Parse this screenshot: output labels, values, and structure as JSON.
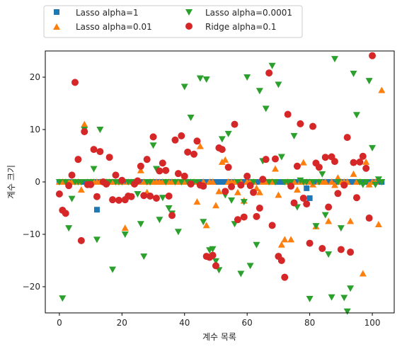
{
  "colors": {
    "lasso_1": "#1f77b4",
    "lasso_001": "#ff7f0e",
    "lasso_00001": "#2ca02c",
    "ridge_01": "#d62728"
  },
  "chart_data": {
    "type": "scatter",
    "title": "",
    "xlabel": "계수 목록",
    "ylabel": "계수 크기",
    "xlim": [
      -4.5,
      107
    ],
    "ylim": [
      -25,
      25
    ],
    "xticks": [
      0,
      20,
      40,
      60,
      80,
      100
    ],
    "yticks": [
      -20,
      -10,
      0,
      10,
      20
    ],
    "grid": false,
    "legend": "upper, outside, two columns",
    "series": [
      {
        "name": "Lasso alpha=1",
        "marker": "square",
        "color": "#1f77b4",
        "note_zero_except": true,
        "points": [
          [
            12,
            -5.3
          ],
          [
            79,
            -1.2
          ],
          [
            80,
            -3.1
          ]
        ]
      },
      {
        "name": "Lasso alpha=0.01",
        "marker": "triangle-up",
        "color": "#ff7f0e",
        "points": [
          [
            7,
            -1.5
          ],
          [
            8,
            11.0
          ],
          [
            21,
            -8.8
          ],
          [
            26,
            2.2
          ],
          [
            28,
            -2.0
          ],
          [
            44,
            -3.8
          ],
          [
            45,
            6.8
          ],
          [
            47,
            -8.3
          ],
          [
            50,
            -4.5
          ],
          [
            51,
            -1.8
          ],
          [
            52,
            3.8
          ],
          [
            53,
            4.2
          ],
          [
            57,
            -2.0
          ],
          [
            59,
            -3.6
          ],
          [
            63,
            -1.2
          ],
          [
            64,
            -2.0
          ],
          [
            69,
            2.5
          ],
          [
            70,
            -2.5
          ],
          [
            71,
            -12.0
          ],
          [
            72,
            -11.0
          ],
          [
            74,
            -11.0
          ],
          [
            76,
            -1.5
          ],
          [
            78,
            3.7
          ],
          [
            81,
            -0.5
          ],
          [
            82,
            -8.5
          ],
          [
            86,
            -7.5
          ],
          [
            88,
            -0.6
          ],
          [
            89,
            0.8
          ],
          [
            93,
            -7.5
          ],
          [
            94,
            1.5
          ],
          [
            97,
            -17.5
          ],
          [
            98,
            3.8
          ],
          [
            99,
            -0.5
          ],
          [
            102,
            -8.1
          ],
          [
            103,
            17.5
          ]
        ]
      },
      {
        "name": "Lasso alpha=0.0001",
        "marker": "triangle-down",
        "color": "#2ca02c",
        "points": [
          [
            0,
            0.0
          ],
          [
            1,
            -22.2
          ],
          [
            3,
            -8.8
          ],
          [
            4,
            -3.2
          ],
          [
            8,
            10.0
          ],
          [
            11,
            2.5
          ],
          [
            12,
            -11.0
          ],
          [
            13,
            10.0
          ],
          [
            17,
            -16.7
          ],
          [
            21,
            -10.0
          ],
          [
            25,
            -2.3
          ],
          [
            26,
            -8.0
          ],
          [
            27,
            -14.2
          ],
          [
            30,
            7.0
          ],
          [
            31,
            2.5
          ],
          [
            32,
            -7.2
          ],
          [
            33,
            -3.0
          ],
          [
            35,
            -5.0
          ],
          [
            36,
            -6.0
          ],
          [
            38,
            -9.5
          ],
          [
            40,
            18.2
          ],
          [
            42,
            12.3
          ],
          [
            45,
            19.8
          ],
          [
            46,
            -7.6
          ],
          [
            47,
            19.6
          ],
          [
            48,
            -13.0
          ],
          [
            49,
            -12.8
          ],
          [
            50,
            -15.1
          ],
          [
            51,
            -16.8
          ],
          [
            52,
            8.2
          ],
          [
            53,
            -2.5
          ],
          [
            54,
            9.2
          ],
          [
            55,
            -3.5
          ],
          [
            56,
            -8.0
          ],
          [
            58,
            -17.5
          ],
          [
            59,
            -3.8
          ],
          [
            60,
            20.0
          ],
          [
            61,
            -16.0
          ],
          [
            63,
            -12.0
          ],
          [
            64,
            17.4
          ],
          [
            65,
            4.0
          ],
          [
            66,
            14.0
          ],
          [
            68,
            22.2
          ],
          [
            70,
            18.6
          ],
          [
            71,
            4.8
          ],
          [
            75,
            8.8
          ],
          [
            76,
            -4.8
          ],
          [
            77,
            0.3
          ],
          [
            80,
            -22.3
          ],
          [
            82,
            -8.4
          ],
          [
            84,
            1.5
          ],
          [
            85,
            -6.3
          ],
          [
            86,
            -13.8
          ],
          [
            87,
            -22.0
          ],
          [
            88,
            23.5
          ],
          [
            90,
            -8.8
          ],
          [
            91,
            -22.1
          ],
          [
            92,
            -24.7
          ],
          [
            93,
            -20.3
          ],
          [
            94,
            20.7
          ],
          [
            95,
            12.8
          ],
          [
            97,
            -0.5
          ],
          [
            99,
            19.3
          ],
          [
            100,
            6.5
          ],
          [
            101,
            -0.5
          ],
          [
            102,
            0.5
          ]
        ]
      },
      {
        "name": "Ridge alpha=0.1",
        "marker": "circle",
        "color": "#d62728",
        "points": [
          [
            0,
            -2.3
          ],
          [
            1,
            -5.4
          ],
          [
            2,
            -6.0
          ],
          [
            3,
            -0.7
          ],
          [
            4,
            1.3
          ],
          [
            5,
            19.0
          ],
          [
            6,
            4.3
          ],
          [
            7,
            -11.2
          ],
          [
            8,
            9.6
          ],
          [
            9,
            -0.5
          ],
          [
            10,
            -0.5
          ],
          [
            11,
            6.2
          ],
          [
            12,
            -2.8
          ],
          [
            13,
            5.8
          ],
          [
            14,
            0.0
          ],
          [
            15,
            -0.4
          ],
          [
            16,
            4.7
          ],
          [
            17,
            -3.4
          ],
          [
            18,
            1.3
          ],
          [
            19,
            -3.5
          ],
          [
            20,
            0.3
          ],
          [
            21,
            -3.4
          ],
          [
            22,
            -2.7
          ],
          [
            23,
            -2.8
          ],
          [
            24,
            -0.4
          ],
          [
            25,
            0.2
          ],
          [
            26,
            3.0
          ],
          [
            27,
            -2.6
          ],
          [
            28,
            4.3
          ],
          [
            29,
            -2.7
          ],
          [
            30,
            8.6
          ],
          [
            31,
            -3.1
          ],
          [
            32,
            2.1
          ],
          [
            33,
            3.6
          ],
          [
            34,
            2.2
          ],
          [
            35,
            -2.7
          ],
          [
            36,
            -6.4
          ],
          [
            37,
            8.0
          ],
          [
            38,
            1.6
          ],
          [
            39,
            8.8
          ],
          [
            40,
            1.1
          ],
          [
            41,
            5.7
          ],
          [
            42,
            -0.4
          ],
          [
            43,
            5.3
          ],
          [
            44,
            7.8
          ],
          [
            45,
            -0.6
          ],
          [
            46,
            -0.8
          ],
          [
            47,
            -14.2
          ],
          [
            48,
            -14.4
          ],
          [
            49,
            -14.0
          ],
          [
            50,
            -16.0
          ],
          [
            51,
            6.5
          ],
          [
            52,
            6.2
          ],
          [
            53,
            -1.8
          ],
          [
            54,
            2.8
          ],
          [
            55,
            -0.9
          ],
          [
            56,
            11.0
          ],
          [
            57,
            -7.2
          ],
          [
            58,
            -0.6
          ],
          [
            59,
            -6.7
          ],
          [
            60,
            1.1
          ],
          [
            61,
            -0.7
          ],
          [
            62,
            -2.0
          ],
          [
            63,
            -6.6
          ],
          [
            64,
            -5.0
          ],
          [
            65,
            0.5
          ],
          [
            66,
            4.3
          ],
          [
            67,
            20.8
          ],
          [
            68,
            -8.3
          ],
          [
            69,
            4.4
          ],
          [
            70,
            -14.2
          ],
          [
            71,
            -15.0
          ],
          [
            72,
            -18.2
          ],
          [
            73,
            12.9
          ],
          [
            74,
            -0.8
          ],
          [
            75,
            -4.0
          ],
          [
            76,
            3.0
          ],
          [
            77,
            11.1
          ],
          [
            78,
            -3.1
          ],
          [
            79,
            -4.2
          ],
          [
            80,
            -11.7
          ],
          [
            81,
            10.6
          ],
          [
            82,
            3.6
          ],
          [
            83,
            2.8
          ],
          [
            84,
            -12.7
          ],
          [
            85,
            4.7
          ],
          [
            86,
            -4.8
          ],
          [
            87,
            4.8
          ],
          [
            88,
            3.9
          ],
          [
            89,
            -2.2
          ],
          [
            90,
            -12.9
          ],
          [
            91,
            -0.6
          ],
          [
            92,
            8.5
          ],
          [
            93,
            -13.4
          ],
          [
            94,
            3.7
          ],
          [
            95,
            -3.0
          ],
          [
            96,
            3.8
          ],
          [
            97,
            4.9
          ],
          [
            98,
            2.6
          ],
          [
            99,
            -6.9
          ],
          [
            100,
            24.1
          ]
        ]
      }
    ]
  }
}
